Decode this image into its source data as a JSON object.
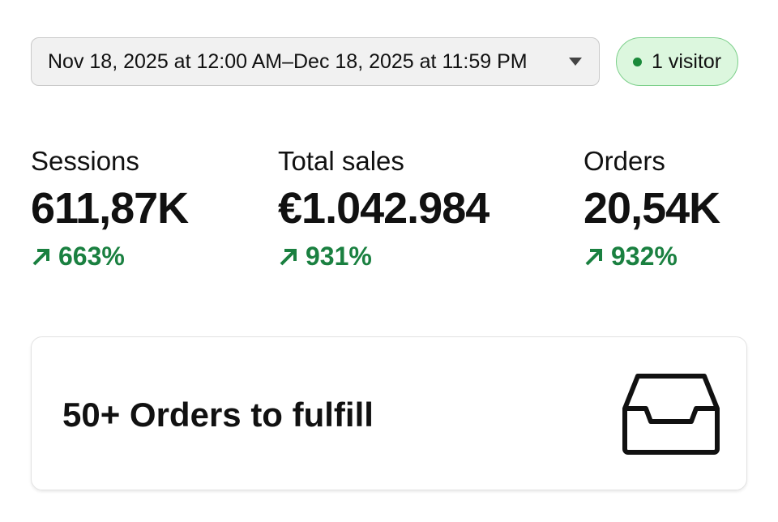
{
  "date_range": "Nov 18, 2025 at 12:00 AM–Dec 18, 2025 at 11:59 PM",
  "visitors": "1 visitor",
  "metrics": [
    {
      "label": "Sessions",
      "value": "611,87K",
      "change": "663%"
    },
    {
      "label": "Total sales",
      "value": "€1.042.984",
      "change": "931%"
    },
    {
      "label": "Orders",
      "value": "20,54K",
      "change": "932%"
    }
  ],
  "card": {
    "title": "50+ Orders to fulfill"
  }
}
